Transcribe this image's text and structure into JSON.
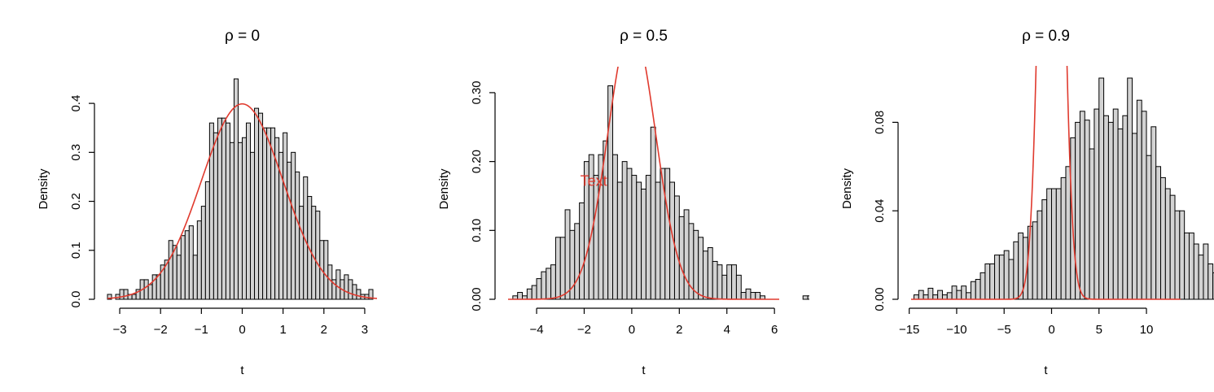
{
  "chart_data": [
    {
      "type": "bar",
      "title": "ρ = 0",
      "xlabel": "t",
      "ylabel": "Density",
      "xlim": [
        -3.3,
        3.3
      ],
      "ylim": [
        0,
        0.45
      ],
      "xticks": [
        -3,
        -2,
        -1,
        0,
        1,
        2,
        3
      ],
      "xtick_labels": [
        "−3",
        "−2",
        "−1",
        "0",
        "1",
        "2",
        "3"
      ],
      "yticks": [
        0.0,
        0.1,
        0.2,
        0.3,
        0.4
      ],
      "ytick_labels": [
        "0.0",
        "0.1",
        "0.2",
        "0.3",
        "0.4"
      ],
      "bin_start": -3.3,
      "bin_width": 0.1,
      "values": [
        0.01,
        0.0,
        0.01,
        0.02,
        0.02,
        0.01,
        0.01,
        0.02,
        0.04,
        0.04,
        0.03,
        0.05,
        0.05,
        0.07,
        0.08,
        0.12,
        0.11,
        0.09,
        0.13,
        0.14,
        0.15,
        0.09,
        0.16,
        0.19,
        0.24,
        0.36,
        0.34,
        0.37,
        0.37,
        0.36,
        0.32,
        0.45,
        0.32,
        0.33,
        0.36,
        0.3,
        0.39,
        0.38,
        0.35,
        0.35,
        0.35,
        0.33,
        0.3,
        0.34,
        0.28,
        0.3,
        0.26,
        0.19,
        0.25,
        0.21,
        0.19,
        0.18,
        0.12,
        0.12,
        0.07,
        0.04,
        0.06,
        0.04,
        0.05,
        0.04,
        0.03,
        0.02,
        0.01,
        0.01,
        0.02
      ],
      "curve": {
        "type": "normal",
        "mean": 0,
        "sd": 1
      }
    },
    {
      "type": "bar",
      "title": "ρ = 0.5",
      "xlabel": "t",
      "ylabel": "Density",
      "xlim": [
        -5.2,
        6.2
      ],
      "ylim": [
        0,
        0.32
      ],
      "xticks": [
        -4,
        -2,
        0,
        2,
        4,
        6
      ],
      "xtick_labels": [
        "−4",
        "−2",
        "0",
        "2",
        "4",
        "6"
      ],
      "yticks": [
        0.0,
        0.1,
        0.2,
        0.3
      ],
      "ytick_labels": [
        "0.00",
        "0.10",
        "0.20",
        "0.30"
      ],
      "bin_start": -5.0,
      "bin_width": 0.2,
      "values": [
        0.005,
        0.01,
        0.005,
        0.015,
        0.02,
        0.03,
        0.04,
        0.045,
        0.05,
        0.09,
        0.09,
        0.13,
        0.1,
        0.11,
        0.14,
        0.2,
        0.21,
        0.18,
        0.21,
        0.23,
        0.31,
        0.21,
        0.17,
        0.2,
        0.19,
        0.18,
        0.17,
        0.16,
        0.18,
        0.25,
        0.17,
        0.19,
        0.19,
        0.17,
        0.15,
        0.12,
        0.13,
        0.11,
        0.1,
        0.09,
        0.07,
        0.075,
        0.055,
        0.05,
        0.035,
        0.05,
        0.05,
        0.035,
        0.01,
        0.015,
        0.01,
        0.01,
        0.005,
        0.0,
        0.0,
        0.0,
        0.0,
        0.0,
        0.0,
        0.0,
        0.0,
        0.005,
        0.005
      ],
      "curve": {
        "type": "normal",
        "mean": 0,
        "sd": 1
      },
      "annotation": {
        "text": "Text",
        "x": -1.6,
        "y": 0.165
      }
    },
    {
      "type": "bar",
      "title": "ρ = 0.9",
      "xlabel": "t",
      "ylabel": "Density",
      "xlim": [
        -14.8,
        13.6
      ],
      "ylim": [
        0,
        0.1
      ],
      "xticks": [
        -15,
        -10,
        -5,
        0,
        5,
        10
      ],
      "xtick_labels": [
        "−15",
        "−10",
        "−5",
        "0",
        "5",
        "10"
      ],
      "yticks": [
        0.0,
        0.04,
        0.08
      ],
      "ytick_labels": [
        "0.00",
        "0.04",
        "0.08"
      ],
      "bin_start": -14.5,
      "bin_width": 0.5,
      "values": [
        0.002,
        0.004,
        0.002,
        0.005,
        0.002,
        0.004,
        0.002,
        0.003,
        0.006,
        0.004,
        0.006,
        0.003,
        0.008,
        0.009,
        0.012,
        0.016,
        0.016,
        0.02,
        0.02,
        0.022,
        0.018,
        0.026,
        0.03,
        0.028,
        0.033,
        0.035,
        0.04,
        0.045,
        0.05,
        0.05,
        0.05,
        0.055,
        0.06,
        0.073,
        0.08,
        0.085,
        0.081,
        0.068,
        0.086,
        0.1,
        0.083,
        0.08,
        0.086,
        0.077,
        0.083,
        0.1,
        0.075,
        0.09,
        0.085,
        0.065,
        0.078,
        0.06,
        0.055,
        0.05,
        0.047,
        0.04,
        0.04,
        0.03,
        0.03,
        0.025,
        0.02,
        0.025,
        0.016,
        0.012,
        0.01,
        0.005,
        0.008,
        0.006,
        0.005,
        0.004,
        0.001,
        0.001,
        0.005,
        0.001,
        0.002,
        0.001,
        0.006
      ],
      "curve": {
        "type": "normal",
        "mean": 0,
        "sd": 1
      }
    }
  ]
}
